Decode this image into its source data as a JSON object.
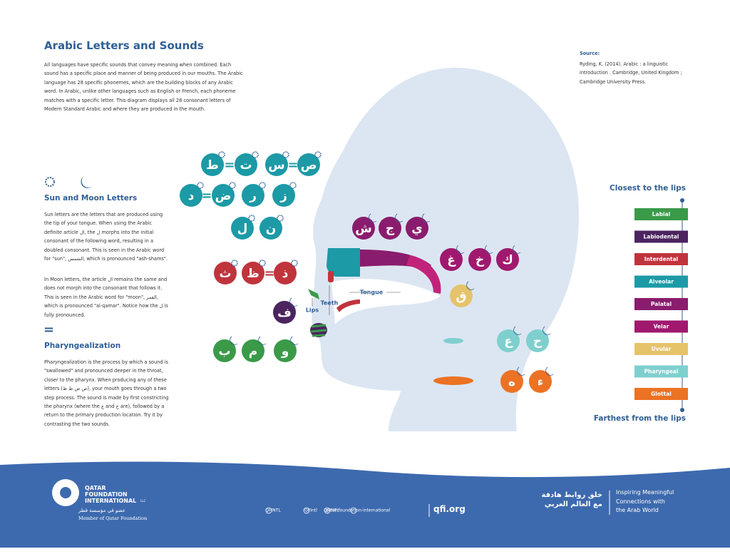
{
  "header": {
    "title": "Arabic Letters and Sounds",
    "intro": "All languages have specific sounds that convey meaning when combined. Each sound has a specific place and manner of being produced in our mouths. The Arabic language has 28 specific phonemes, which are the building blocks of any Arabic word. In Arabic, unlike other languages such as English or French, each phoneme matches with a specific letter. This diagram displays all 28 consonant letters of Modern Standard Arabic and where they are produced in the mouth."
  },
  "source": {
    "label": "Source:",
    "text": "Ryding, K. (2014). Arabic : a linguistic introduction . Cambridge, United Kingdom ; Cambridge University Press."
  },
  "sun_moon": {
    "heading": "Sun and Moon Letters",
    "sun_text": "Sun letters are the letters that are produced using the tip of your tongue. When using the Arabic definite article ال, the ل morphs into the initial consonant of the following word, resulting in a doubled consonant. This is seen in the Arabic word for \"sun\", الشمس, which is pronounced \"ash-shams\".",
    "moon_text": "In Moon letters, the article ال remains the same and does not morph into the consonant that follows it. This is seen in the Arabic word for \"moon\", القمر, which is pronounced \"al-qamar\". Notice how the ل is fully pronounced."
  },
  "pharyngealization": {
    "icon": "=",
    "heading": "Pharyngealization",
    "text": "Pharyngealization is the process by which a sound is \"swallowed\" and pronounced deeper in the throat, closer to the pharynx. When producing any of these letters (ص ض ط ظ), your mouth goes through a two step process. The sound is made by first constricting the pharynx (where the ع and ح are), followed by a return to the primary production location. Try it by contrasting the two sounds."
  },
  "diagram": {
    "labels": [
      "Tongue",
      "Teeth",
      "Lips"
    ],
    "groups": [
      {
        "color": "#1c9aa6",
        "letters": [
          "ط",
          "=",
          "ت"
        ]
      },
      {
        "color": "#1c9aa6",
        "letters": [
          "س",
          "=",
          "ص"
        ]
      },
      {
        "color": "#1c9aa6",
        "letters": [
          "د",
          "=",
          "ض",
          "ر",
          "ز"
        ]
      },
      {
        "color": "#1c9aa6",
        "letters": [
          "ل",
          "ن"
        ]
      },
      {
        "color": "#c0343c",
        "letters": [
          "ث",
          "ظ",
          "=",
          "ذ"
        ]
      },
      {
        "color": "#4b2460",
        "letters": [
          "ف"
        ]
      },
      {
        "color": "#3a9a48",
        "letters": [
          "ب",
          "م",
          "و"
        ]
      },
      {
        "color": "#8a1c6e",
        "letters": [
          "ش",
          "ج",
          "ي"
        ]
      },
      {
        "color": "#a0196e",
        "letters": [
          "غ",
          "خ",
          "ك"
        ]
      },
      {
        "color": "#e5c36a",
        "letters": [
          "ق"
        ]
      },
      {
        "color": "#7fcfcf",
        "letters": [
          "ع",
          "ح"
        ]
      },
      {
        "color": "#ec7224",
        "letters": [
          "ه",
          "ء"
        ]
      }
    ]
  },
  "legend": {
    "top": "Closest to the lips",
    "bottom": "Farthest from the lips",
    "items": [
      {
        "label": "Labial",
        "color": "#3a9a48"
      },
      {
        "label": "Labiodental",
        "color": "#4b2460"
      },
      {
        "label": "Interdental",
        "color": "#c0343c"
      },
      {
        "label": "Alveolar",
        "color": "#1c9aa6"
      },
      {
        "label": "Palatal",
        "color": "#8a1c6e"
      },
      {
        "label": "Velar",
        "color": "#a0196e"
      },
      {
        "label": "Uvular",
        "color": "#e5c36a"
      },
      {
        "label": "Pharyngeal",
        "color": "#7fcfcf"
      },
      {
        "label": "Glottal",
        "color": "#ec7224"
      }
    ]
  },
  "footer": {
    "org": [
      "QATAR",
      "FOUNDATION",
      "INTERNATIONAL"
    ],
    "llc": "LLC",
    "org_ar": "عضو في مؤسسة قطر",
    "member": "Member of Qatar Foundation",
    "social": [
      "QFINTL",
      "QFIntl",
      "QFINTL",
      "qatar-foundation-international"
    ],
    "site": "qfi.org",
    "slogan_ar": [
      "خلق روابط هادفة",
      "مع العالم العربي"
    ],
    "slogan": [
      "Inspiring Meaningful",
      "Connections with",
      "the Arab World"
    ]
  }
}
